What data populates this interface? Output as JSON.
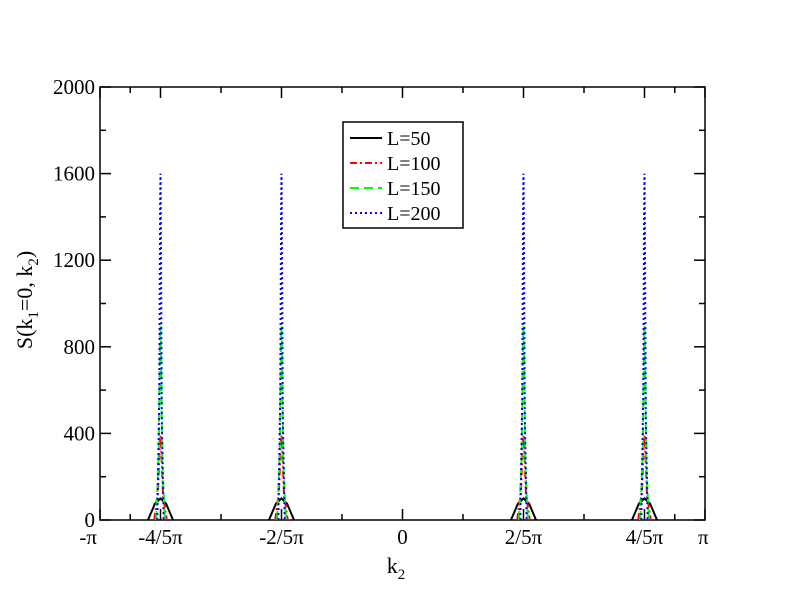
{
  "chart_data": {
    "type": "line",
    "xlabel": {
      "base": "k",
      "sub": "2"
    },
    "ylabel": {
      "pre": "S(k",
      "sub1": "1",
      "mid": "=0, k",
      "sub2": "2",
      "post": ")"
    },
    "xlim": [
      -3.14159,
      3.14159
    ],
    "ylim": [
      0,
      2000
    ],
    "yticks": [
      0,
      400,
      800,
      1200,
      1600,
      2000
    ],
    "xticks": [
      {
        "value": -3.14159,
        "label": "-π"
      },
      {
        "value": -2.51327,
        "label": "-4/5π"
      },
      {
        "value": -1.25664,
        "label": "-2/5π"
      },
      {
        "value": 0,
        "label": "0"
      },
      {
        "value": 1.25664,
        "label": "2/5π"
      },
      {
        "value": 2.51327,
        "label": "4/5π"
      },
      {
        "value": 3.14159,
        "label": "π"
      }
    ],
    "peak_positions": [
      -2.51327,
      -1.25664,
      1.25664,
      2.51327
    ],
    "legend_position": "top-center",
    "grid": false,
    "series": [
      {
        "name": "L=50",
        "color": "#000000",
        "style": "solid",
        "peak": 100,
        "halfwidth": 0.13
      },
      {
        "name": "L=100",
        "color": "#ff0000",
        "style": "dashdot",
        "peak": 390,
        "halfwidth": 0.065
      },
      {
        "name": "L=150",
        "color": "#00ff00",
        "style": "dashed",
        "peak": 900,
        "halfwidth": 0.045
      },
      {
        "name": "L=200",
        "color": "#0000ff",
        "style": "dotted",
        "peak": 1600,
        "halfwidth": 0.033
      }
    ]
  }
}
